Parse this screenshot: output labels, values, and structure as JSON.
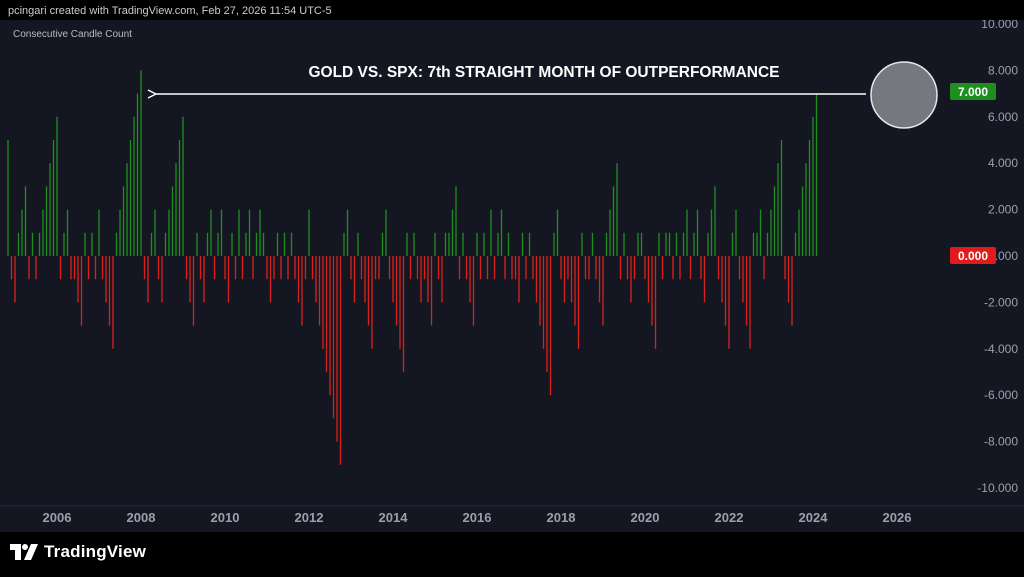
{
  "header": {
    "created_by": "pcingari created with TradingView.com, Feb 27, 2026 11:54 UTC-5"
  },
  "footer": {
    "brand": "TradingView",
    "brand_icon": "tradingview-logo-icon"
  },
  "colors": {
    "background": "#141722",
    "positive": "#1e8f1e",
    "negative": "#d9211b",
    "tick_text": "#9aa0ab",
    "annotation": "#ffffff"
  },
  "chart_data": {
    "type": "bar",
    "indicator_label": "Consecutive Candle Count",
    "annotation": "GOLD VS. SPX: 7th STRAIGHT MONTH OF OUTPERFORMANCE",
    "x_ticks": [
      "2006",
      "2008",
      "2010",
      "2012",
      "2014",
      "2016",
      "2018",
      "2020",
      "2022",
      "2024",
      "2026"
    ],
    "y_ticks": [
      "10.000",
      "8.000",
      "6.000",
      "4.000",
      "2.000",
      "0.000",
      "-2.000",
      "-4.000",
      "-6.000",
      "-8.000",
      "-10.000"
    ],
    "ylim": [
      -10.5,
      10
    ],
    "x_start": "2004-11",
    "interval": "monthly",
    "values": [
      5,
      -1,
      -2,
      1,
      2,
      3,
      -1,
      1,
      -1,
      1,
      2,
      3,
      4,
      5,
      6,
      -1,
      1,
      2,
      -1,
      -1,
      -2,
      -3,
      1,
      -1,
      1,
      -1,
      2,
      -1,
      -2,
      -3,
      -4,
      1,
      2,
      3,
      4,
      5,
      6,
      7,
      8,
      -1,
      -2,
      1,
      2,
      -1,
      -2,
      1,
      2,
      3,
      4,
      5,
      6,
      -1,
      -2,
      -3,
      1,
      -1,
      -2,
      1,
      2,
      -1,
      1,
      2,
      -1,
      -2,
      1,
      -1,
      2,
      -1,
      1,
      2,
      -1,
      1,
      2,
      1,
      -1,
      -2,
      -1,
      1,
      -1,
      1,
      -1,
      1,
      -1,
      -2,
      -3,
      -1,
      2,
      -1,
      -2,
      -3,
      -4,
      -5,
      -6,
      -7,
      -8,
      -9,
      1,
      2,
      -1,
      -2,
      1,
      -1,
      -2,
      -3,
      -4,
      -1,
      -1,
      1,
      2,
      -1,
      -2,
      -3,
      -4,
      -5,
      1,
      -1,
      1,
      -1,
      -2,
      -1,
      -2,
      -3,
      1,
      -1,
      -2,
      1,
      1,
      2,
      3,
      -1,
      1,
      -1,
      -2,
      -3,
      1,
      -1,
      1,
      -1,
      2,
      -1,
      1,
      2,
      -1,
      1,
      -1,
      -1,
      -2,
      1,
      -1,
      1,
      -1,
      -2,
      -3,
      -4,
      -5,
      -6,
      1,
      2,
      -1,
      -2,
      -1,
      -2,
      -3,
      -4,
      1,
      -1,
      -1,
      1,
      -1,
      -2,
      -3,
      1,
      2,
      3,
      4,
      -1,
      1,
      -1,
      -2,
      -1,
      1,
      1,
      -1,
      -2,
      -3,
      -4,
      1,
      -1,
      1,
      1,
      -1,
      1,
      -1,
      1,
      2,
      -1,
      1,
      2,
      -1,
      -2,
      1,
      2,
      3,
      -1,
      -2,
      -3,
      -4,
      1,
      2,
      -1,
      -2,
      -3,
      -4,
      1,
      1,
      2,
      -1,
      1,
      2,
      3,
      4,
      5,
      -1,
      -2,
      -3,
      1,
      2,
      3,
      4,
      5,
      6,
      7
    ],
    "last_value_label": "7.000",
    "zero_value_label": "0.000",
    "grid": false,
    "legend": "none",
    "highlight": "last bar circled"
  }
}
